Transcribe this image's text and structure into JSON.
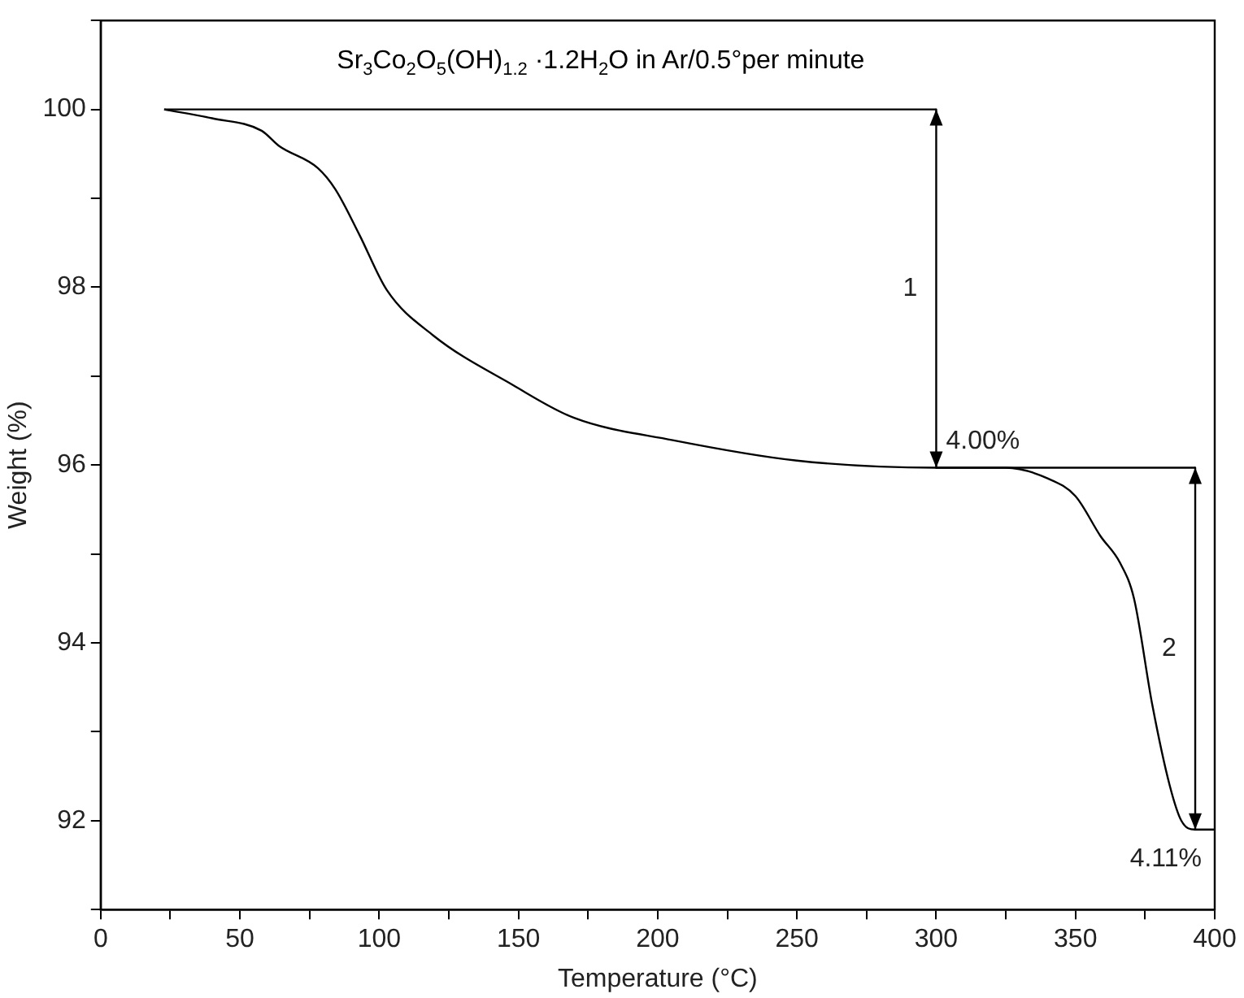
{
  "chart_data": {
    "type": "line",
    "title": "Sr$_{3}$Co$_{2}$O$_{5}$(OH)$_{1.2}$ ·1.2H$_{2}$O in Ar/0.5°per minute",
    "xlabel": "Temperature (°C)",
    "ylabel": "Weight (%)",
    "xlim": [
      0,
      400
    ],
    "xticks": [
      0,
      {
        "value": 25,
        "label": null
      },
      50,
      {
        "value": 75,
        "label": null
      },
      100,
      {
        "value": 125,
        "label": null
      },
      150,
      {
        "value": 175,
        "label": null
      },
      200,
      {
        "value": 225,
        "label": null
      },
      250,
      {
        "value": 275,
        "label": null
      },
      300,
      {
        "value": 325,
        "label": null
      },
      350,
      {
        "value": 375,
        "label": null
      },
      400
    ],
    "ylim": [
      91,
      101
    ],
    "yticks": [
      {
        "value": 91,
        "label": null
      },
      92,
      {
        "value": 93,
        "label": null
      },
      94,
      {
        "value": 95,
        "label": null
      },
      96,
      {
        "value": 97,
        "label": null
      },
      98,
      {
        "value": 99,
        "label": null
      },
      100,
      {
        "value": 101,
        "label": null
      }
    ],
    "grid": false,
    "legend": false,
    "marker": "none",
    "line_style": "solid",
    "series": [
      {
        "color": "#000000",
        "x": [
          22.8,
          40,
          57.8,
          64,
          78,
          84.3,
          92.9,
          102.7,
          119.3,
          148,
          170,
          205.4,
          250,
          300,
          325,
          340,
          350,
          359,
          366,
          371,
          377.6,
          383.8,
          388,
          393,
          400
        ],
        "values": [
          100,
          99.9,
          99.76,
          99.59,
          99.34,
          99.1,
          98.59,
          97.97,
          97.46,
          96.9,
          96.53,
          96.28,
          96.05,
          95.97,
          95.97,
          95.85,
          95.65,
          95.2,
          94.9,
          94.5,
          93.3,
          92.4,
          92,
          91.9,
          91.9
        ]
      },
      {
        "color": "#000000",
        "x": [
          22.8,
          300
        ],
        "values": [
          100,
          100
        ]
      },
      {
        "color": "#000000",
        "x": [
          300,
          393
        ],
        "values": [
          95.97,
          95.97
        ]
      },
      {
        "color": "#000000",
        "x": [
          300,
          300
        ],
        "values": [
          100,
          95.97
        ]
      },
      {
        "color": "#000000",
        "x": [
          393,
          393
        ],
        "values": [
          95.97,
          91.9
        ]
      }
    ],
    "annotations": [
      "1",
      "4.00%",
      "2",
      "4.11%"
    ]
  }
}
